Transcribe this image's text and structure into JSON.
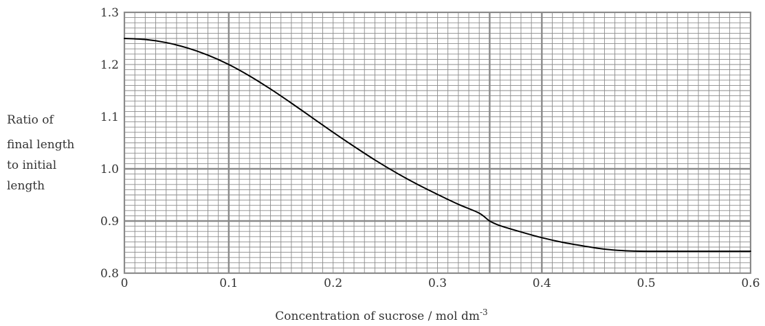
{
  "chart_data": {
    "type": "line",
    "title": "",
    "xlabel": "Concentration of sucrose / mol dm",
    "xlabel_superscript": "-3",
    "ylabel_lines": [
      "Ratio of",
      "final length",
      "to initial",
      "length"
    ],
    "xlim": [
      0,
      0.6
    ],
    "ylim": [
      0.8,
      1.3
    ],
    "x_ticks": [
      "0",
      "0.1",
      "0.2",
      "0.3",
      "0.4",
      "0.5",
      "0.6"
    ],
    "y_ticks": [
      "0.8",
      "0.9",
      "1.0",
      "1.1",
      "1.2",
      "1.3"
    ],
    "x_tick_values": [
      0,
      0.1,
      0.2,
      0.3,
      0.4,
      0.5,
      0.6
    ],
    "y_tick_values": [
      0.8,
      0.9,
      1.0,
      1.1,
      1.2,
      1.3
    ],
    "x_highlight_lines": [
      0.1,
      0.35,
      0.4
    ],
    "y_highlight_lines": [
      0.9,
      1.0
    ],
    "x_minor_step": 0.01,
    "y_minor_step": 0.01,
    "grid": true,
    "legend": "none",
    "series": [
      {
        "x": [
          0,
          0.02,
          0.04,
          0.06,
          0.08,
          0.1,
          0.12,
          0.14,
          0.16,
          0.18,
          0.2,
          0.22,
          0.24,
          0.26,
          0.28,
          0.3,
          0.32,
          0.34,
          0.35,
          0.36,
          0.38,
          0.4,
          0.42,
          0.44,
          0.46,
          0.48,
          0.5,
          0.55,
          0.6
        ],
        "y": [
          1.25,
          1.248,
          1.242,
          1.232,
          1.218,
          1.2,
          1.178,
          1.153,
          1.126,
          1.098,
          1.07,
          1.043,
          1.017,
          0.993,
          0.971,
          0.951,
          0.932,
          0.915,
          0.9,
          0.891,
          0.879,
          0.868,
          0.859,
          0.852,
          0.846,
          0.843,
          0.842,
          0.842,
          0.842
        ]
      }
    ],
    "colors": {
      "minor_grid": "#8a8a8a",
      "major_grid": "#8a8a8a",
      "curve": "#000000",
      "text": "#333333"
    }
  }
}
